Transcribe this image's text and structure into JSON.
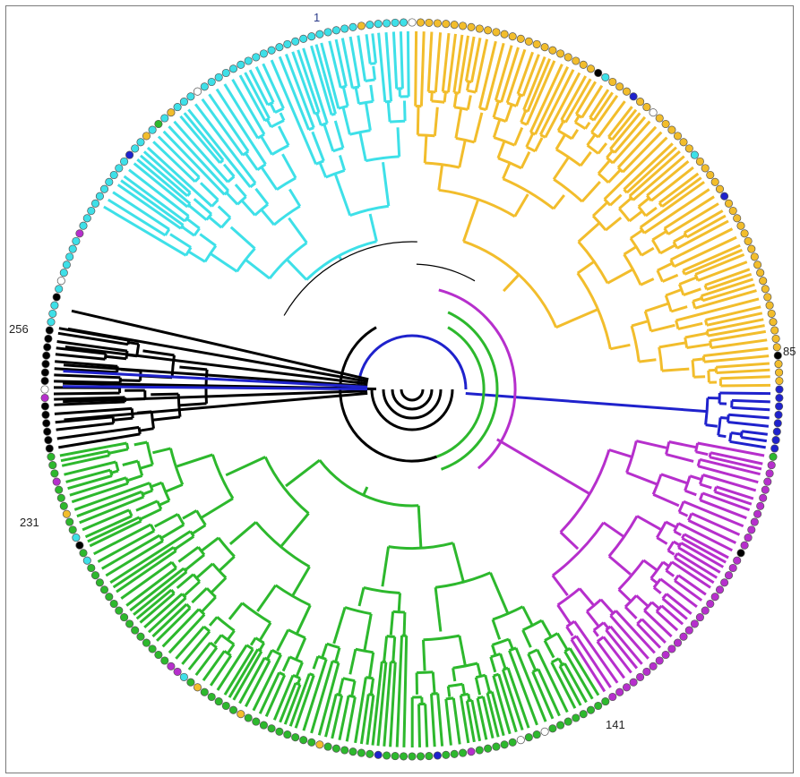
{
  "labels": {
    "l1": "1",
    "l85": "85",
    "l141": "141",
    "l231": "231",
    "l256": "256"
  },
  "leaf_count": 272,
  "clades": [
    {
      "name": "yellow",
      "color": "#f2bd2c"
    },
    {
      "name": "blue",
      "color": "#1f22cc"
    },
    {
      "name": "magenta",
      "color": "#b62fcc"
    },
    {
      "name": "green",
      "color": "#2db82d"
    },
    {
      "name": "black",
      "color": "#000000"
    },
    {
      "name": "cyan",
      "color": "#3ee0e8"
    }
  ],
  "marker_colors": {
    "yellow": "#f2bd2c",
    "blue": "#1f22cc",
    "magenta": "#b62fcc",
    "green": "#2db82d",
    "black": "#000000",
    "cyan": "#3ee0e8",
    "white": "#ffffff"
  }
}
